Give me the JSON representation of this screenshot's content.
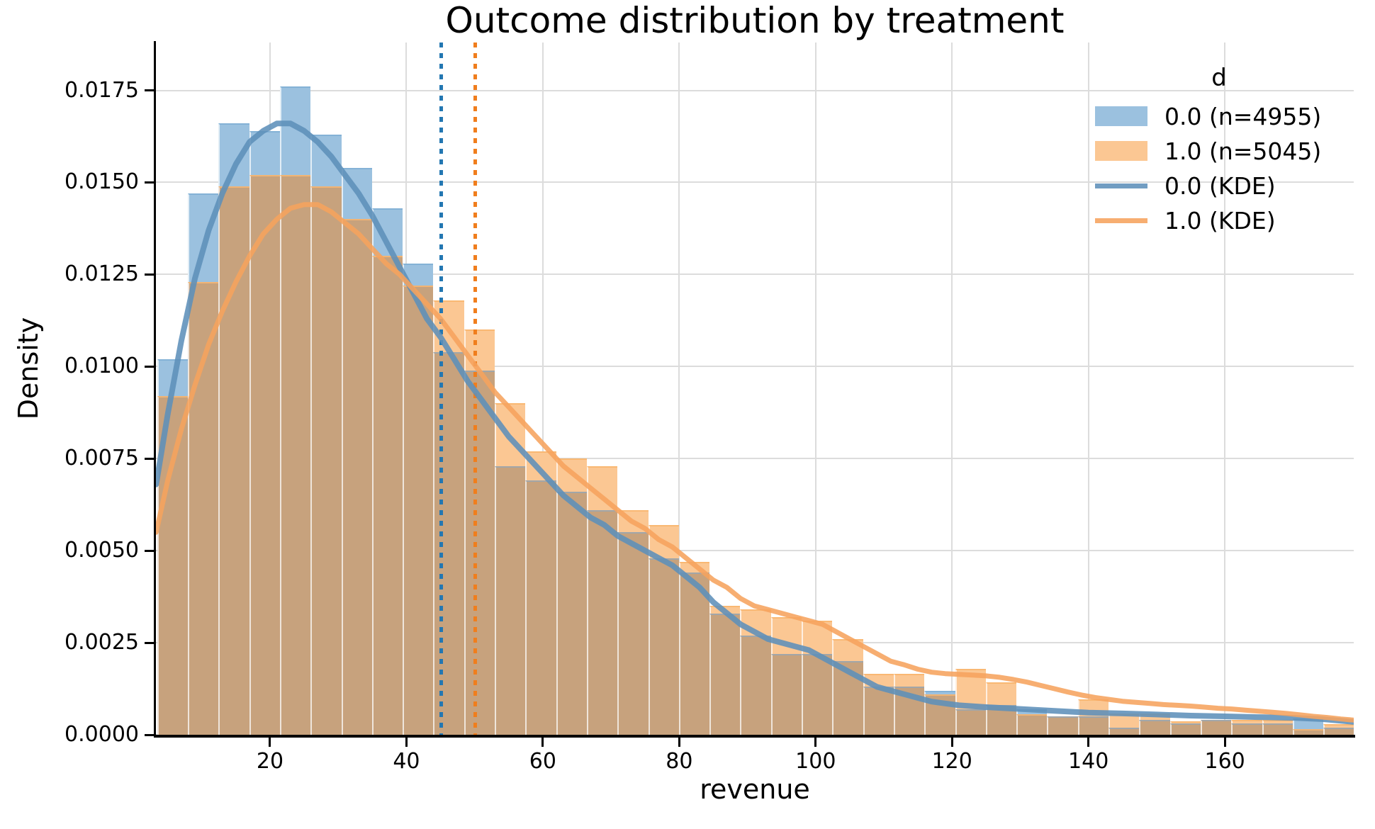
{
  "figure": {
    "title": "Outcome distribution by treatment",
    "xlabel": "revenue",
    "ylabel": "Density"
  },
  "legend": {
    "title": "d",
    "entries": [
      {
        "label": "0.0 (n=4955)",
        "handle": "patch",
        "color_key": "hist_blue"
      },
      {
        "label": "1.0 (n=5045)",
        "handle": "patch",
        "color_key": "hist_orange"
      },
      {
        "label": "0.0 (KDE)",
        "handle": "line",
        "color_key": "kde_blue"
      },
      {
        "label": "1.0 (KDE)",
        "handle": "line",
        "color_key": "kde_orange"
      }
    ]
  },
  "colors": {
    "hist_blue": "#9bc1df",
    "hist_blue_edge": "#84b2d6",
    "hist_orange": "#fbc793",
    "hist_orange_edge": "#f9b873",
    "overlap": "#c7a27d",
    "kde_blue": "#5d8fb9",
    "kde_orange": "#f6a35d",
    "vline_blue": "#2377b2",
    "vline_orange": "#f07e1d",
    "grid": "#dcdcdc",
    "axis": "#000000",
    "separator": "rgba(255,255,255,0.72)"
  },
  "chart_data": {
    "type": "histogram+kde",
    "title": "Outcome distribution by treatment",
    "xlabel": "revenue",
    "ylabel": "Density",
    "grid": true,
    "legend_position": "upper right",
    "xlim": [
      3.27,
      178.9
    ],
    "ylim": [
      0,
      0.0188
    ],
    "x_tick_values": [
      20,
      40,
      60,
      80,
      100,
      120,
      140,
      160
    ],
    "x_tick_labels": [
      "20",
      "40",
      "60",
      "80",
      "100",
      "120",
      "140",
      "160"
    ],
    "y_tick_values": [
      0,
      0.0025,
      0.005,
      0.0075,
      0.01,
      0.0125,
      0.015,
      0.0175
    ],
    "y_tick_labels": [
      "0.0000",
      "0.0025",
      "0.0050",
      "0.0075",
      "0.0100",
      "0.0125",
      "0.0150",
      "0.0175"
    ],
    "bins": {
      "start": 3.45,
      "width": 4.5,
      "count": 39
    },
    "series": [
      {
        "name": "0.0 (n=4955)",
        "color_key": "hist_blue",
        "densities": [
          0.0102,
          0.0147,
          0.0166,
          0.0164,
          0.0176,
          0.0163,
          0.0154,
          0.0143,
          0.0128,
          0.0104,
          0.0099,
          0.0073,
          0.0069,
          0.0066,
          0.0061,
          0.0055,
          0.0048,
          0.0044,
          0.0033,
          0.0027,
          0.0022,
          0.0022,
          0.002,
          0.0013,
          0.0013,
          0.0012,
          0.0007,
          0.0008,
          0.0007,
          0.0005,
          0.0005,
          0.0002,
          0.0004,
          0.0003,
          0.0004,
          0.0003,
          0.0003,
          0.00045,
          0.0002
        ]
      },
      {
        "name": "1.0 (n=5045)",
        "color_key": "hist_orange",
        "densities": [
          0.0092,
          0.0123,
          0.0149,
          0.0152,
          0.0152,
          0.0149,
          0.014,
          0.013,
          0.0122,
          0.0118,
          0.011,
          0.009,
          0.0077,
          0.0075,
          0.0073,
          0.0061,
          0.0057,
          0.0047,
          0.0035,
          0.0034,
          0.0032,
          0.0031,
          0.0026,
          0.00165,
          0.00165,
          0.0011,
          0.00178,
          0.00143,
          0.00056,
          0.0005,
          0.00097,
          0.00058,
          0.00057,
          0.00037,
          0.0004,
          0.0004,
          0.0004,
          0.00015,
          0.00029
        ]
      }
    ],
    "kde": [
      {
        "name": "0.0 (KDE)",
        "color_key": "kde_blue",
        "points": [
          [
            3.3,
            0.0068
          ],
          [
            5,
            0.0087
          ],
          [
            7,
            0.0107
          ],
          [
            9,
            0.0124
          ],
          [
            11,
            0.0137
          ],
          [
            13,
            0.0147
          ],
          [
            15,
            0.0155
          ],
          [
            17,
            0.0161
          ],
          [
            19,
            0.0164
          ],
          [
            21,
            0.0166
          ],
          [
            23,
            0.0166
          ],
          [
            25,
            0.0164
          ],
          [
            27,
            0.0161
          ],
          [
            29,
            0.0157
          ],
          [
            31,
            0.0152
          ],
          [
            33,
            0.0147
          ],
          [
            35,
            0.0141
          ],
          [
            37,
            0.0134
          ],
          [
            39,
            0.0127
          ],
          [
            41,
            0.012
          ],
          [
            43,
            0.0113
          ],
          [
            45,
            0.0108
          ],
          [
            47,
            0.0102
          ],
          [
            49,
            0.0096
          ],
          [
            51,
            0.0091
          ],
          [
            53,
            0.0086
          ],
          [
            55,
            0.0081
          ],
          [
            57,
            0.0077
          ],
          [
            59,
            0.0073
          ],
          [
            61,
            0.0069
          ],
          [
            63,
            0.0065
          ],
          [
            65,
            0.0062
          ],
          [
            67,
            0.0059
          ],
          [
            69,
            0.0057
          ],
          [
            71,
            0.0054
          ],
          [
            73,
            0.0052
          ],
          [
            75,
            0.005
          ],
          [
            77,
            0.0048
          ],
          [
            79,
            0.0046
          ],
          [
            81,
            0.0043
          ],
          [
            83,
            0.004
          ],
          [
            85,
            0.0036
          ],
          [
            87,
            0.0033
          ],
          [
            89,
            0.003
          ],
          [
            91,
            0.0028
          ],
          [
            93,
            0.0026
          ],
          [
            95,
            0.0025
          ],
          [
            97,
            0.0024
          ],
          [
            99,
            0.0023
          ],
          [
            101,
            0.0021
          ],
          [
            103,
            0.0019
          ],
          [
            105,
            0.0017
          ],
          [
            107,
            0.0015
          ],
          [
            109,
            0.0013
          ],
          [
            111,
            0.0012
          ],
          [
            113,
            0.0011
          ],
          [
            115,
            0.001
          ],
          [
            117,
            0.0009
          ],
          [
            119,
            0.00085
          ],
          [
            121,
            0.0008
          ],
          [
            125,
            0.00075
          ],
          [
            130,
            0.0007
          ],
          [
            135,
            0.00065
          ],
          [
            140,
            0.0006
          ],
          [
            145,
            0.00058
          ],
          [
            150,
            0.00055
          ],
          [
            155,
            0.00052
          ],
          [
            160,
            0.0005
          ],
          [
            165,
            0.00048
          ],
          [
            170,
            0.00046
          ],
          [
            174,
            0.00043
          ],
          [
            178.8,
            0.00035
          ]
        ]
      },
      {
        "name": "1.0 (KDE)",
        "color_key": "kde_orange",
        "points": [
          [
            3.3,
            0.0055
          ],
          [
            5,
            0.0069
          ],
          [
            7,
            0.0083
          ],
          [
            9,
            0.0095
          ],
          [
            11,
            0.0106
          ],
          [
            13,
            0.0115
          ],
          [
            15,
            0.0123
          ],
          [
            17,
            0.013
          ],
          [
            19,
            0.0136
          ],
          [
            21,
            0.014
          ],
          [
            23,
            0.0143
          ],
          [
            25,
            0.0144
          ],
          [
            27,
            0.0144
          ],
          [
            29,
            0.0142
          ],
          [
            31,
            0.0139
          ],
          [
            33,
            0.0136
          ],
          [
            35,
            0.0132
          ],
          [
            37,
            0.0128
          ],
          [
            39,
            0.0125
          ],
          [
            41,
            0.0121
          ],
          [
            43,
            0.0117
          ],
          [
            45,
            0.0113
          ],
          [
            47,
            0.0108
          ],
          [
            49,
            0.0103
          ],
          [
            51,
            0.0098
          ],
          [
            53,
            0.0093
          ],
          [
            55,
            0.0089
          ],
          [
            57,
            0.0085
          ],
          [
            59,
            0.0081
          ],
          [
            61,
            0.0077
          ],
          [
            63,
            0.0073
          ],
          [
            65,
            0.007
          ],
          [
            67,
            0.0067
          ],
          [
            69,
            0.0064
          ],
          [
            71,
            0.0061
          ],
          [
            73,
            0.0058
          ],
          [
            75,
            0.0056
          ],
          [
            77,
            0.0053
          ],
          [
            79,
            0.0051
          ],
          [
            81,
            0.0048
          ],
          [
            83,
            0.0045
          ],
          [
            85,
            0.0042
          ],
          [
            87,
            0.004
          ],
          [
            89,
            0.0037
          ],
          [
            91,
            0.0035
          ],
          [
            93,
            0.0034
          ],
          [
            95,
            0.0033
          ],
          [
            97,
            0.0032
          ],
          [
            99,
            0.0031
          ],
          [
            101,
            0.003
          ],
          [
            103,
            0.0028
          ],
          [
            105,
            0.0026
          ],
          [
            107,
            0.0024
          ],
          [
            109,
            0.0022
          ],
          [
            111,
            0.002
          ],
          [
            113,
            0.0019
          ],
          [
            115,
            0.00178
          ],
          [
            117,
            0.0017
          ],
          [
            119,
            0.00166
          ],
          [
            121,
            0.00164
          ],
          [
            123,
            0.00162
          ],
          [
            125,
            0.0016
          ],
          [
            127,
            0.00156
          ],
          [
            129,
            0.0015
          ],
          [
            131,
            0.00143
          ],
          [
            133,
            0.00134
          ],
          [
            135,
            0.00125
          ],
          [
            137,
            0.00116
          ],
          [
            139,
            0.00108
          ],
          [
            141,
            0.00101
          ],
          [
            143,
            0.00096
          ],
          [
            145,
            0.00091
          ],
          [
            147,
            0.00088
          ],
          [
            149,
            0.00085
          ],
          [
            151,
            0.00082
          ],
          [
            153,
            0.0008
          ],
          [
            155,
            0.00078
          ],
          [
            157,
            0.00075
          ],
          [
            159,
            0.00072
          ],
          [
            161,
            0.0007
          ],
          [
            163,
            0.00067
          ],
          [
            165,
            0.00064
          ],
          [
            167,
            0.00061
          ],
          [
            169,
            0.00058
          ],
          [
            171,
            0.00054
          ],
          [
            173,
            0.0005
          ],
          [
            175,
            0.00047
          ],
          [
            177,
            0.00043
          ],
          [
            178.8,
            0.0004
          ]
        ]
      }
    ],
    "mean_lines": [
      {
        "x": 45.1,
        "color_key": "vline_blue",
        "style": "dotted"
      },
      {
        "x": 50.1,
        "color_key": "vline_orange",
        "style": "dotted"
      }
    ]
  }
}
